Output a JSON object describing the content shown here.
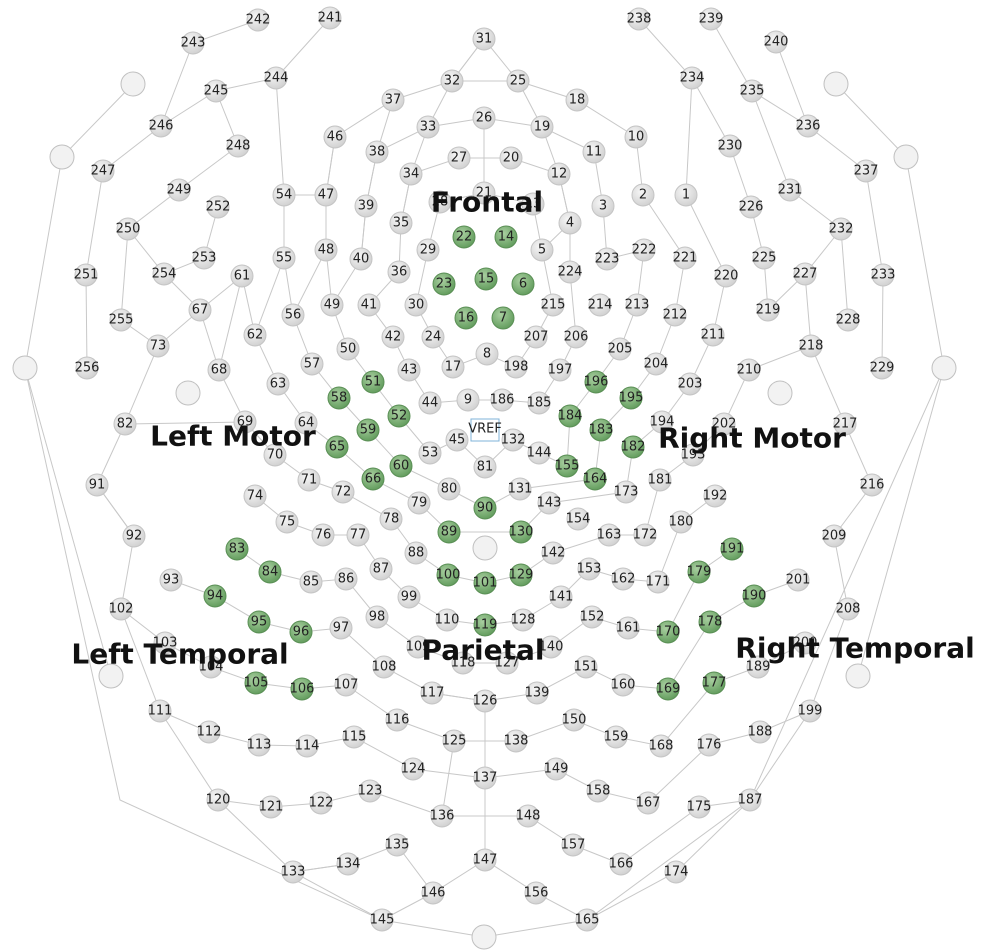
{
  "nodes": [
    {
      "label": "1"
    },
    {
      "label": "2"
    },
    {
      "label": "3"
    },
    {
      "label": "4"
    },
    {
      "label": "5"
    },
    {
      "label": "6",
      "selected": true
    },
    {
      "label": "7",
      "selected": true
    },
    {
      "label": "8"
    },
    {
      "label": "9"
    },
    {
      "label": "10"
    },
    {
      "label": "11"
    },
    {
      "label": "12"
    },
    {
      "label": "13"
    },
    {
      "label": "14",
      "selected": true
    },
    {
      "label": "15",
      "selected": true
    },
    {
      "label": "16",
      "selected": true
    },
    {
      "label": "17"
    },
    {
      "label": "18"
    },
    {
      "label": "19"
    },
    {
      "label": "20"
    },
    {
      "label": "21"
    },
    {
      "label": "22",
      "selected": true
    },
    {
      "label": "23",
      "selected": true
    },
    {
      "label": "24"
    },
    {
      "label": "25"
    },
    {
      "label": "26"
    },
    {
      "label": "27"
    },
    {
      "label": "28"
    },
    {
      "label": "29"
    },
    {
      "label": "30"
    },
    {
      "label": "31"
    },
    {
      "label": "32"
    },
    {
      "label": "33"
    },
    {
      "label": "34"
    },
    {
      "label": "35"
    },
    {
      "label": "36"
    },
    {
      "label": "37"
    },
    {
      "label": "38"
    },
    {
      "label": "39"
    },
    {
      "label": "40"
    },
    {
      "label": "41"
    },
    {
      "label": "42"
    },
    {
      "label": "43"
    },
    {
      "label": "44"
    },
    {
      "label": "45"
    },
    {
      "label": "46"
    },
    {
      "label": "47"
    },
    {
      "label": "48"
    },
    {
      "label": "49"
    },
    {
      "label": "50"
    },
    {
      "label": "51",
      "selected": true
    },
    {
      "label": "52",
      "selected": true
    },
    {
      "label": "53"
    },
    {
      "label": "54"
    },
    {
      "label": "55"
    },
    {
      "label": "56"
    },
    {
      "label": "57"
    },
    {
      "label": "58",
      "selected": true
    },
    {
      "label": "59",
      "selected": true
    },
    {
      "label": "60",
      "selected": true
    },
    {
      "label": "61"
    },
    {
      "label": "62"
    },
    {
      "label": "63"
    },
    {
      "label": "64"
    },
    {
      "label": "65",
      "selected": true
    },
    {
      "label": "66",
      "selected": true
    },
    {
      "label": "67"
    },
    {
      "label": "68"
    },
    {
      "label": "69"
    },
    {
      "label": "70"
    },
    {
      "label": "71"
    },
    {
      "label": "72"
    },
    {
      "label": "73"
    },
    {
      "label": "74"
    },
    {
      "label": "75"
    },
    {
      "label": "76"
    },
    {
      "label": "77"
    },
    {
      "label": "78"
    },
    {
      "label": "79"
    },
    {
      "label": "80"
    },
    {
      "label": "81"
    },
    {
      "label": "82"
    },
    {
      "label": "83",
      "selected": true
    },
    {
      "label": "84",
      "selected": true
    },
    {
      "label": "85"
    },
    {
      "label": "86"
    },
    {
      "label": "87"
    },
    {
      "label": "88"
    },
    {
      "label": "89",
      "selected": true
    },
    {
      "label": "90",
      "selected": true
    },
    {
      "label": "91"
    },
    {
      "label": "92"
    },
    {
      "label": "93"
    },
    {
      "label": "94",
      "selected": true
    },
    {
      "label": "95",
      "selected": true
    },
    {
      "label": "96",
      "selected": true
    },
    {
      "label": "97"
    },
    {
      "label": "98"
    },
    {
      "label": "99"
    },
    {
      "label": "100",
      "selected": true
    },
    {
      "label": "101",
      "selected": true
    },
    {
      "label": "102"
    },
    {
      "label": "103"
    },
    {
      "label": "104"
    },
    {
      "label": "105",
      "selected": true
    },
    {
      "label": "106",
      "selected": true
    },
    {
      "label": "107"
    },
    {
      "label": "108"
    },
    {
      "label": "109"
    },
    {
      "label": "110"
    },
    {
      "label": "111"
    },
    {
      "label": "112"
    },
    {
      "label": "113"
    },
    {
      "label": "114"
    },
    {
      "label": "115"
    },
    {
      "label": "116"
    },
    {
      "label": "117"
    },
    {
      "label": "118"
    },
    {
      "label": "119",
      "selected": true
    },
    {
      "label": "120"
    },
    {
      "label": "121"
    },
    {
      "label": "122"
    },
    {
      "label": "123"
    },
    {
      "label": "124"
    },
    {
      "label": "125"
    },
    {
      "label": "126"
    },
    {
      "label": "127"
    },
    {
      "label": "128"
    },
    {
      "label": "129",
      "selected": true
    },
    {
      "label": "130",
      "selected": true
    },
    {
      "label": "131"
    },
    {
      "label": "132"
    },
    {
      "label": "133"
    },
    {
      "label": "134"
    },
    {
      "label": "135"
    },
    {
      "label": "136"
    },
    {
      "label": "137"
    },
    {
      "label": "138"
    },
    {
      "label": "139"
    },
    {
      "label": "140"
    },
    {
      "label": "141"
    },
    {
      "label": "142"
    },
    {
      "label": "143"
    },
    {
      "label": "144"
    },
    {
      "label": "145"
    },
    {
      "label": "146"
    },
    {
      "label": "147"
    },
    {
      "label": "148"
    },
    {
      "label": "149"
    },
    {
      "label": "150"
    },
    {
      "label": "151"
    },
    {
      "label": "152"
    },
    {
      "label": "153"
    },
    {
      "label": "154"
    },
    {
      "label": "155",
      "selected": true
    },
    {
      "label": "156"
    },
    {
      "label": "157"
    },
    {
      "label": "158"
    },
    {
      "label": "159"
    },
    {
      "label": "160"
    },
    {
      "label": "161"
    },
    {
      "label": "162"
    },
    {
      "label": "163"
    },
    {
      "label": "164",
      "selected": true
    },
    {
      "label": "165"
    },
    {
      "label": "166"
    },
    {
      "label": "167"
    },
    {
      "label": "168"
    },
    {
      "label": "169",
      "selected": true
    },
    {
      "label": "170",
      "selected": true
    },
    {
      "label": "171"
    },
    {
      "label": "172"
    },
    {
      "label": "173"
    },
    {
      "label": "174"
    },
    {
      "label": "175"
    },
    {
      "label": "176"
    },
    {
      "label": "177",
      "selected": true
    },
    {
      "label": "178",
      "selected": true
    },
    {
      "label": "179",
      "selected": true
    },
    {
      "label": "180"
    },
    {
      "label": "181"
    },
    {
      "label": "182",
      "selected": true
    },
    {
      "label": "183",
      "selected": true
    },
    {
      "label": "184",
      "selected": true
    },
    {
      "label": "185"
    },
    {
      "label": "186"
    },
    {
      "label": "187"
    },
    {
      "label": "188"
    },
    {
      "label": "189"
    },
    {
      "label": "190",
      "selected": true
    },
    {
      "label": "191",
      "selected": true
    },
    {
      "label": "192"
    },
    {
      "label": "193"
    },
    {
      "label": "194"
    },
    {
      "label": "195",
      "selected": true
    },
    {
      "label": "196",
      "selected": true
    },
    {
      "label": "197"
    },
    {
      "label": "198"
    },
    {
      "label": "199"
    },
    {
      "label": "200"
    },
    {
      "label": "201"
    },
    {
      "label": "202"
    },
    {
      "label": "203"
    },
    {
      "label": "204"
    },
    {
      "label": "205"
    },
    {
      "label": "206"
    },
    {
      "label": "207"
    },
    {
      "label": "208"
    },
    {
      "label": "209"
    },
    {
      "label": "210"
    },
    {
      "label": "211"
    },
    {
      "label": "212"
    },
    {
      "label": "213"
    },
    {
      "label": "214"
    },
    {
      "label": "215"
    },
    {
      "label": "216"
    },
    {
      "label": "217"
    },
    {
      "label": "218"
    },
    {
      "label": "219"
    },
    {
      "label": "220"
    },
    {
      "label": "221"
    },
    {
      "label": "222"
    },
    {
      "label": "223"
    },
    {
      "label": "224"
    },
    {
      "label": "225"
    },
    {
      "label": "226"
    },
    {
      "label": "227"
    },
    {
      "label": "228"
    },
    {
      "label": "229"
    },
    {
      "label": "230"
    },
    {
      "label": "231"
    },
    {
      "label": "232"
    },
    {
      "label": "233"
    },
    {
      "label": "234"
    },
    {
      "label": "235"
    },
    {
      "label": "236"
    },
    {
      "label": "237"
    },
    {
      "label": "238"
    },
    {
      "label": "239"
    },
    {
      "label": "240"
    },
    {
      "label": "241"
    },
    {
      "label": "242"
    },
    {
      "label": "243"
    },
    {
      "label": "244"
    },
    {
      "label": "245"
    },
    {
      "label": "246"
    },
    {
      "label": "247"
    },
    {
      "label": "248"
    },
    {
      "label": "249"
    },
    {
      "label": "250"
    },
    {
      "label": "251"
    },
    {
      "label": "252"
    },
    {
      "label": "253"
    },
    {
      "label": "254"
    },
    {
      "label": "255"
    },
    {
      "label": "256"
    }
  ],
  "reference": "VREF",
  "regions": [
    "Frontal",
    "Left Motor",
    "Right Motor",
    "Parietal",
    "Left Temporal",
    "Right Temporal"
  ]
}
